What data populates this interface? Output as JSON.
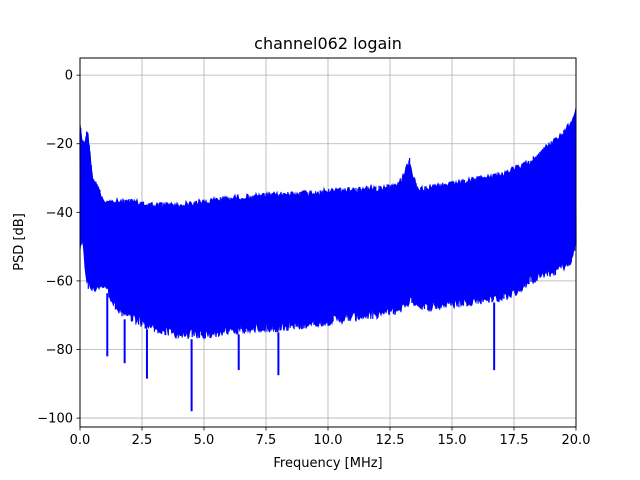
{
  "chart_data": {
    "type": "line",
    "title": "channel062 logain",
    "xlabel": "Frequency [MHz]",
    "ylabel": "PSD [dB]",
    "xlim": [
      0,
      20
    ],
    "ylim": [
      -102.6,
      5
    ],
    "grid": true,
    "x_ticks": [
      0,
      2.5,
      5,
      7.5,
      10,
      12.5,
      15,
      17.5,
      20
    ],
    "x_tick_labels": [
      "0.0",
      "2.5",
      "5.0",
      "7.5",
      "10.0",
      "12.5",
      "15.0",
      "17.5",
      "20.0"
    ],
    "y_ticks": [
      0,
      -20,
      -40,
      -60,
      -80,
      -100
    ],
    "y_tick_labels": [
      "0",
      "−20",
      "−40",
      "−60",
      "−80",
      "−100"
    ],
    "series": [
      {
        "color": "#0000ff",
        "envelope_x": [
          0,
          0.1,
          0.2,
          0.3,
          0.5,
          1,
          1.5,
          2,
          3,
          4,
          5,
          6,
          7,
          8,
          9,
          10,
          11,
          12,
          12.8,
          13.0,
          13.2,
          13.3,
          13.4,
          13.6,
          14,
          15,
          16,
          17,
          17.5,
          18,
          18.5,
          19,
          19.5,
          19.8,
          20
        ],
        "envelope_upper": [
          -13,
          -19,
          -18,
          -15,
          -29,
          -36,
          -36,
          -36,
          -37,
          -37,
          -36,
          -35,
          -34.5,
          -34,
          -33.5,
          -33,
          -32.5,
          -32,
          -31.5,
          -29,
          -25,
          -24,
          -28,
          -32,
          -32,
          -31,
          -29.5,
          -28,
          -26.5,
          -25,
          -22,
          -19,
          -16,
          -13,
          -9
        ],
        "envelope_lower": [
          -52,
          -50,
          -57,
          -62,
          -64,
          -62,
          -70,
          -72,
          -75,
          -77,
          -77,
          -76,
          -75,
          -75,
          -74,
          -73,
          -72,
          -71,
          -70,
          -69,
          -68,
          -67,
          -67,
          -68,
          -69,
          -68,
          -67,
          -66,
          -65,
          -62,
          -60,
          -59,
          -57,
          -56,
          -50
        ],
        "dips": [
          [
            1.1,
            -82
          ],
          [
            1.8,
            -84
          ],
          [
            2.7,
            -88.5
          ],
          [
            4.5,
            -98
          ],
          [
            6.4,
            -86
          ],
          [
            8.0,
            -87.5
          ],
          [
            16.7,
            -86
          ]
        ]
      }
    ]
  }
}
